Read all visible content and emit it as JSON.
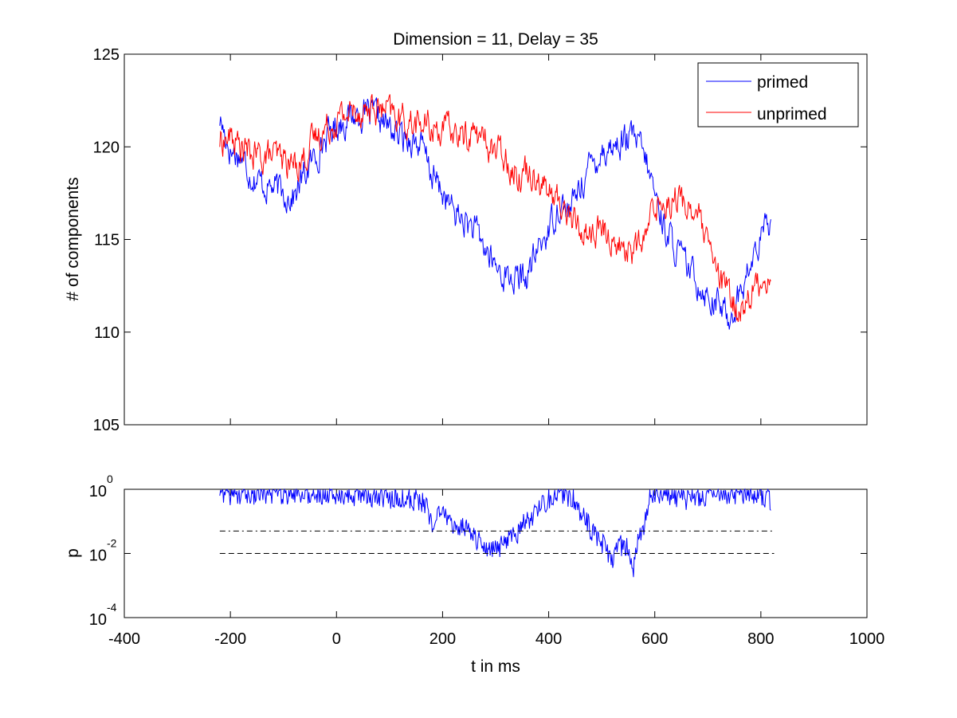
{
  "chart_data": [
    {
      "type": "line",
      "title": "Dimension  = 11, Delay = 35",
      "xlabel": "",
      "ylabel": "# of components",
      "xlim": [
        -400,
        1000
      ],
      "ylim": [
        105,
        125
      ],
      "yticks": [
        105,
        110,
        115,
        120,
        125
      ],
      "grid": false,
      "legend_position": "top-right",
      "series": [
        {
          "name": "primed",
          "color": "#0000ff",
          "x": [
            -220,
            -200,
            -180,
            -160,
            -140,
            -120,
            -100,
            -80,
            -60,
            -40,
            -20,
            0,
            20,
            40,
            60,
            80,
            100,
            120,
            140,
            160,
            180,
            200,
            220,
            240,
            260,
            280,
            300,
            320,
            340,
            360,
            380,
            400,
            420,
            440,
            460,
            480,
            500,
            520,
            540,
            560,
            580,
            600,
            620,
            640,
            660,
            680,
            700,
            720,
            740,
            760,
            780,
            800,
            820
          ],
          "y": [
            121.5,
            119.8,
            119.5,
            118.5,
            118.0,
            117.8,
            117.5,
            117.3,
            118.5,
            119.5,
            120.5,
            121.2,
            121.5,
            121.8,
            121.7,
            121.5,
            121.0,
            120.5,
            120.5,
            120.0,
            118.5,
            117.5,
            116.5,
            116.0,
            115.5,
            114.5,
            113.5,
            113.0,
            112.8,
            113.0,
            114.5,
            115.5,
            117.0,
            116.5,
            118.0,
            119.0,
            119.8,
            120.0,
            120.3,
            120.5,
            119.5,
            117.5,
            115.5,
            114.5,
            113.5,
            112.8,
            112.0,
            111.5,
            110.8,
            112.0,
            113.5,
            115.0,
            116.2
          ]
        },
        {
          "name": "unprimed",
          "color": "#ff0000",
          "x": [
            -220,
            -200,
            -180,
            -160,
            -140,
            -120,
            -100,
            -80,
            -60,
            -40,
            -20,
            0,
            20,
            40,
            60,
            80,
            100,
            120,
            140,
            160,
            180,
            200,
            220,
            240,
            260,
            280,
            300,
            320,
            340,
            360,
            380,
            400,
            420,
            440,
            460,
            480,
            500,
            520,
            540,
            560,
            580,
            600,
            620,
            640,
            660,
            680,
            700,
            720,
            740,
            760,
            780,
            800,
            820
          ],
          "y": [
            120.3,
            120.5,
            120.0,
            119.5,
            119.5,
            119.5,
            119.3,
            119.0,
            119.5,
            120.5,
            121.0,
            121.5,
            121.8,
            122.0,
            122.0,
            122.0,
            121.8,
            121.5,
            121.3,
            121.2,
            121.0,
            121.0,
            120.8,
            120.5,
            120.8,
            120.3,
            119.8,
            119.5,
            118.5,
            118.8,
            118.5,
            117.5,
            117.0,
            116.3,
            115.5,
            115.3,
            115.5,
            115.0,
            114.5,
            114.5,
            114.8,
            117.0,
            117.0,
            117.3,
            116.8,
            116.5,
            114.5,
            113.0,
            112.0,
            111.0,
            112.0,
            112.8,
            113.0
          ]
        }
      ]
    },
    {
      "type": "line",
      "title": "",
      "xlabel": "t in ms",
      "ylabel": "p",
      "xlim": [
        -400,
        1000
      ],
      "xticks": [
        -400,
        -200,
        0,
        200,
        400,
        600,
        800,
        1000
      ],
      "ylim": [
        0.0001,
        1
      ],
      "yscale": "log",
      "yticks": [
        {
          "value": 1,
          "base": "10",
          "exp": "0"
        },
        {
          "value": 0.01,
          "base": "10",
          "exp": "-2"
        },
        {
          "value": 0.0001,
          "base": "10",
          "exp": "-4"
        }
      ],
      "grid": false,
      "series": [
        {
          "name": "",
          "color": "#0000ff",
          "x": [
            -220,
            -200,
            -180,
            -160,
            -140,
            -120,
            -100,
            -80,
            -60,
            -40,
            -20,
            0,
            20,
            40,
            60,
            80,
            100,
            120,
            140,
            160,
            180,
            200,
            220,
            240,
            260,
            280,
            300,
            320,
            340,
            360,
            380,
            400,
            420,
            440,
            460,
            480,
            500,
            520,
            540,
            560,
            580,
            600,
            620,
            640,
            660,
            680,
            700,
            720,
            740,
            760,
            780,
            800,
            820
          ],
          "y": [
            0.8,
            0.7,
            0.75,
            0.7,
            0.8,
            0.75,
            0.7,
            0.8,
            0.75,
            0.7,
            0.8,
            0.75,
            0.7,
            0.6,
            0.5,
            0.6,
            0.5,
            0.6,
            0.5,
            0.4,
            0.1,
            0.2,
            0.05,
            0.08,
            0.03,
            0.01,
            0.015,
            0.02,
            0.04,
            0.1,
            0.2,
            0.5,
            0.8,
            0.6,
            0.2,
            0.05,
            0.02,
            0.005,
            0.02,
            0.002,
            0.05,
            0.8,
            0.7,
            0.6,
            0.5,
            0.6,
            0.7,
            0.8,
            0.75,
            0.7,
            0.8,
            0.7,
            0.4
          ]
        },
        {
          "name": "",
          "color": "#000000",
          "dash": "dashdot",
          "x": [
            -220,
            825
          ],
          "y": [
            0.05,
            0.05
          ]
        },
        {
          "name": "",
          "color": "#000000",
          "dash": "dashed",
          "x": [
            -220,
            825
          ],
          "y": [
            0.01,
            0.01
          ]
        }
      ]
    }
  ]
}
